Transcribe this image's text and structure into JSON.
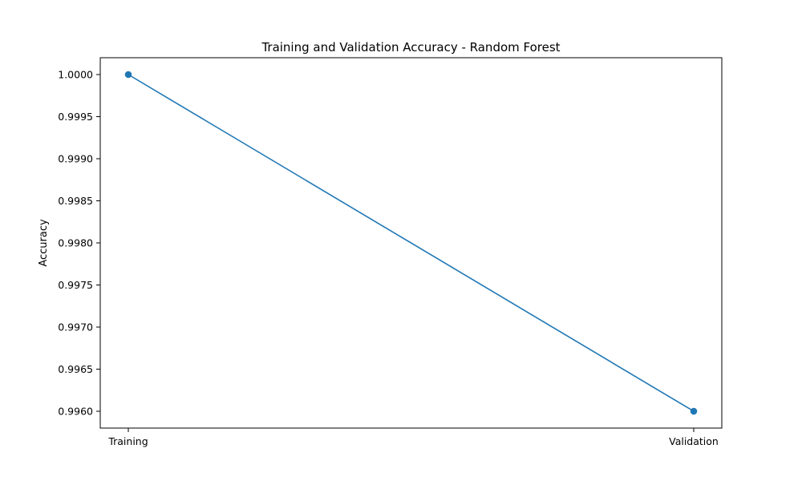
{
  "chart_data": {
    "type": "line",
    "title": "Training and Validation Accuracy - Random Forest",
    "xlabel": "",
    "ylabel": "Accuracy",
    "categories": [
      "Training",
      "Validation"
    ],
    "values": [
      1.0,
      0.996
    ],
    "ylim": [
      0.9958,
      1.0002
    ],
    "yticks": [
      1.0,
      0.9995,
      0.999,
      0.9985,
      0.998,
      0.9975,
      0.997,
      0.9965,
      0.996
    ],
    "ytick_labels": [
      "1.0000",
      "0.9995",
      "0.9990",
      "0.9985",
      "0.9980",
      "0.9975",
      "0.9970",
      "0.9965",
      "0.9960"
    ],
    "grid": false,
    "legend": "none",
    "marker": "circle",
    "color": "#1f77b4"
  }
}
